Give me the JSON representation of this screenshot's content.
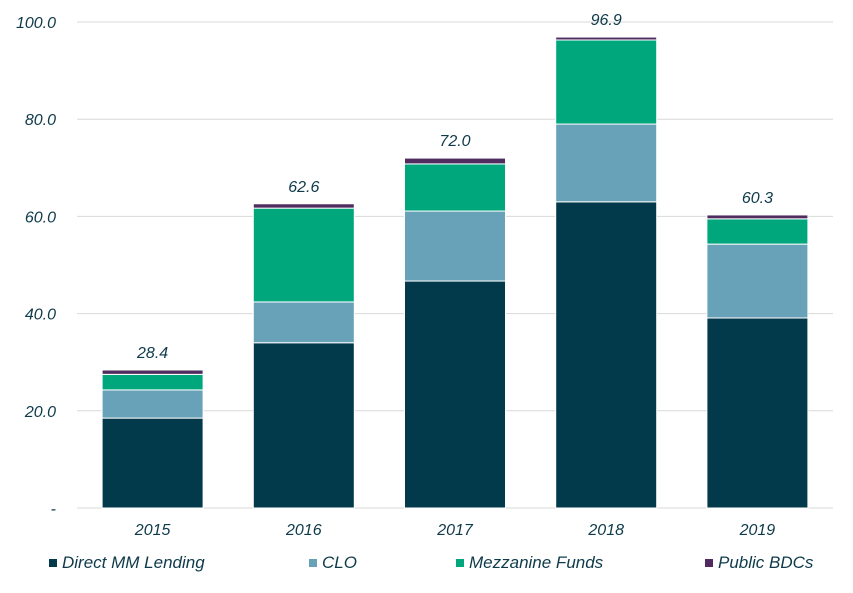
{
  "chart_data": {
    "type": "bar",
    "stacked": true,
    "title": "",
    "xlabel": "",
    "ylabel": "",
    "ylim": [
      0,
      100
    ],
    "grid": true,
    "legend_position": "bottom",
    "categories": [
      "2015",
      "2016",
      "2017",
      "2018",
      "2019"
    ],
    "y_ticks": [
      0,
      20,
      40,
      60,
      80,
      100
    ],
    "y_tick_labels": [
      "-",
      "20.0",
      "40.0",
      "60.0",
      "80.0",
      "100.0"
    ],
    "series": [
      {
        "name": "Direct MM Lending",
        "color": "#033a4b",
        "values": [
          18.5,
          34.0,
          46.7,
          63.0,
          39.1
        ]
      },
      {
        "name": "CLO",
        "color": "#68a2b8",
        "values": [
          5.8,
          8.4,
          14.4,
          16.0,
          15.2
        ]
      },
      {
        "name": "Mezzanine Funds",
        "color": "#00a77d",
        "values": [
          3.2,
          19.3,
          9.7,
          17.3,
          5.2
        ]
      },
      {
        "name": "Public BDCs",
        "color": "#4f2b5f",
        "values": [
          0.9,
          0.9,
          1.2,
          0.6,
          0.8
        ]
      }
    ],
    "totals": [
      28.4,
      62.6,
      72.0,
      96.9,
      60.3
    ],
    "total_labels": [
      "28.4",
      "62.6",
      "72.0",
      "96.9",
      "60.3"
    ]
  }
}
